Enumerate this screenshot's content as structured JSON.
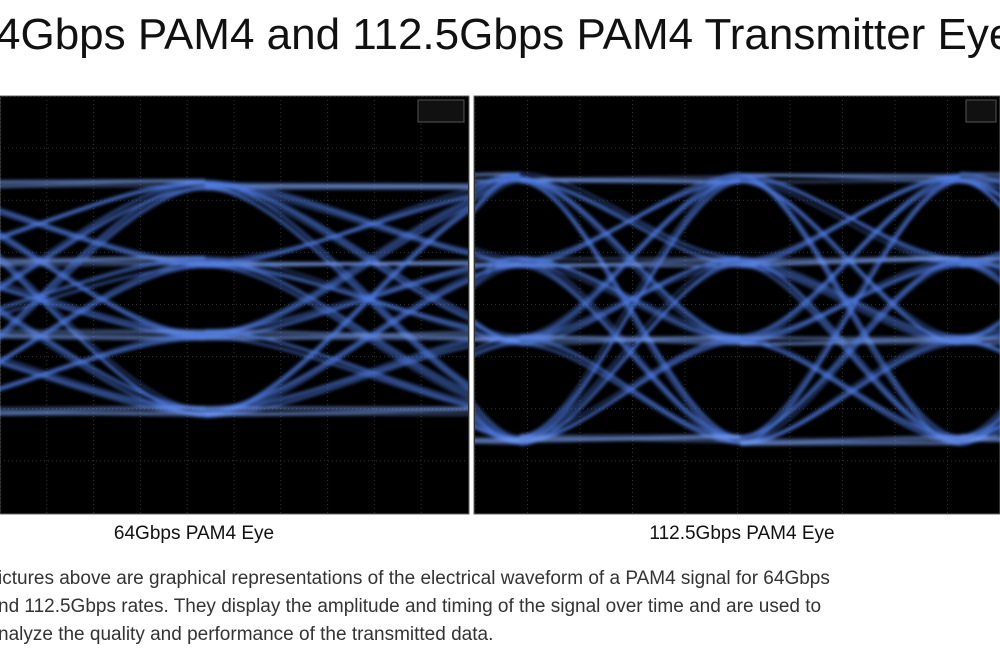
{
  "title": "4Gbps PAM4 and 112.5Gbps PAM4 Transmitter Eye",
  "captions": [
    "64Gbps PAM4 Eye",
    "112.5Gbps PAM4 Eye"
  ],
  "paragraph": [
    "ictures above are graphical representations of the electrical waveform of a PAM4 signal for 64Gbps",
    "nd 112.5Gbps rates. They display the amplitude and timing of the signal over time and are used to",
    "nalyze the quality and performance of the transmitted data."
  ]
}
